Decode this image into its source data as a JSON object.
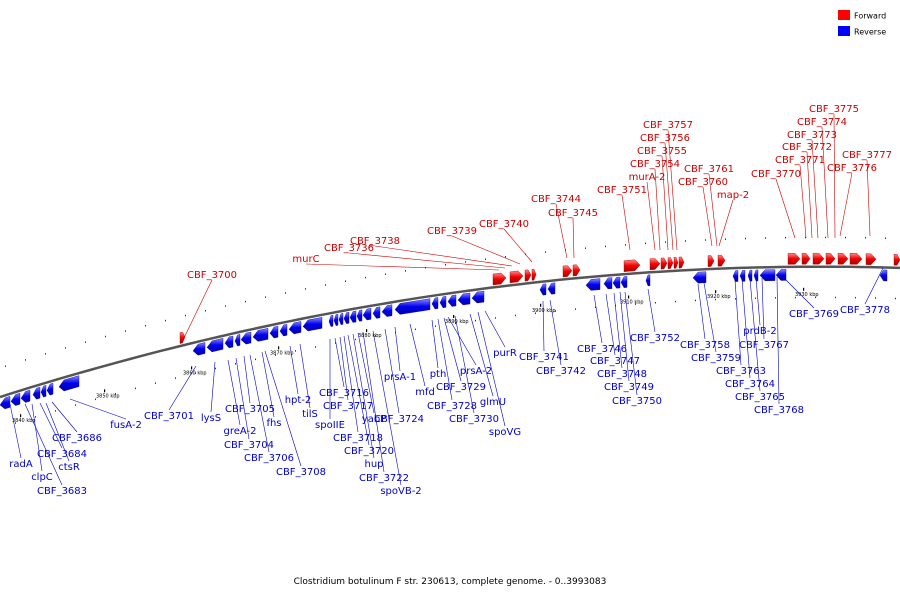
{
  "legend": [
    {
      "label": "Forward",
      "color": "#ff0000"
    },
    {
      "label": "Reverse",
      "color": "#0000ff"
    }
  ],
  "caption": "Clostridium botulinum F str. 230613, complete genome. - 0..3993083",
  "ticks": [
    "3840 kbp",
    "3850 kbp",
    "3860 kbp",
    "3870 kbp",
    "3880 kbp",
    "3890 kbp",
    "3900 kbp",
    "3910 kbp",
    "3920 kbp",
    "3930 kbp"
  ],
  "forward_labels": [
    "CBF_3700",
    "murC",
    "CBF_3736",
    "CBF_3738",
    "CBF_3739",
    "CBF_3740",
    "CBF_3744",
    "CBF_3745",
    "CBF_3751",
    "murA-2",
    "CBF_3754",
    "CBF_3755",
    "CBF_3756",
    "CBF_3757",
    "CBF_3760",
    "CBF_3761",
    "map-2",
    "CBF_3770",
    "CBF_3771",
    "CBF_3772",
    "CBF_3773",
    "CBF_3774",
    "CBF_3775",
    "CBF_3776",
    "CBF_3777"
  ],
  "reverse_labels": [
    "radA",
    "CBF_3683",
    "clpC",
    "CBF_3684",
    "ctsR",
    "CBF_3686",
    "fusA-2",
    "CBF_3701",
    "lysS",
    "greA-2",
    "CBF_3704",
    "CBF_3705",
    "CBF_3706",
    "fhs",
    "CBF_3708",
    "hpt-2",
    "tilS",
    "spoIIE",
    "CBF_3716",
    "CBF_3717",
    "CBF_3718",
    "CBF_3720",
    "hup",
    "yabP",
    "CBF_3722",
    "spoVB-2",
    "CBF_3724",
    "prsA-1",
    "mfd",
    "pth",
    "CBF_3728",
    "CBF_3729",
    "prsA-2",
    "CBF_3730",
    "glmU",
    "spoVG",
    "purR",
    "CBF_3741",
    "CBF_3742",
    "CBF_3746",
    "CBF_3747",
    "CBF_3748",
    "CBF_3749",
    "CBF_3750",
    "CBF_3752",
    "CBF_3758",
    "CBF_3759",
    "CBF_3763",
    "CBF_3764",
    "CBF_3765",
    "prdB-2",
    "CBF_3767",
    "CBF_3768",
    "CBF_3769",
    "CBF_3778"
  ]
}
